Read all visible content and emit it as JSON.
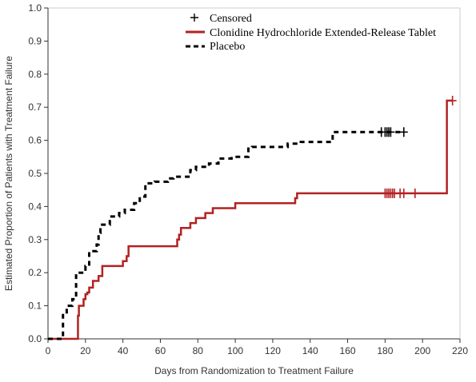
{
  "chart_data": {
    "type": "line",
    "xlabel": "Days from Randomization to Treatment Failure",
    "ylabel": "Estimated Proportion of Patients with Treatment Failure",
    "xlim": [
      0,
      220
    ],
    "ylim": [
      0.0,
      1.0
    ],
    "x_ticks": [
      0,
      20,
      40,
      60,
      80,
      100,
      120,
      140,
      160,
      180,
      200,
      220
    ],
    "y_ticks": [
      "0.0",
      "0.1",
      "0.2",
      "0.3",
      "0.4",
      "0.5",
      "0.6",
      "0.7",
      "0.8",
      "0.9",
      "1.0"
    ],
    "grid": false,
    "legend_position": "top-center",
    "legend": {
      "censored": "Censored",
      "entries": [
        "Clonidine Hydrochloride Extended-Release Tablet",
        "Placebo"
      ]
    },
    "series": [
      {
        "name": "Clonidine Hydrochloride Extended-Release Tablet",
        "color": "#b22222",
        "style": "solid",
        "steps": [
          [
            0,
            0.0
          ],
          [
            16,
            0.07
          ],
          [
            16.5,
            0.1
          ],
          [
            19,
            0.12
          ],
          [
            20,
            0.135
          ],
          [
            21,
            0.14
          ],
          [
            22,
            0.155
          ],
          [
            24,
            0.175
          ],
          [
            27,
            0.19
          ],
          [
            29,
            0.22
          ],
          [
            40,
            0.235
          ],
          [
            42,
            0.25
          ],
          [
            43,
            0.28
          ],
          [
            69,
            0.3
          ],
          [
            70,
            0.315
          ],
          [
            71,
            0.335
          ],
          [
            76,
            0.35
          ],
          [
            79,
            0.365
          ],
          [
            84,
            0.38
          ],
          [
            88,
            0.395
          ],
          [
            100,
            0.41
          ],
          [
            132,
            0.425
          ],
          [
            133,
            0.44
          ],
          [
            213,
            0.72
          ]
        ],
        "end_x": 216,
        "censored_x": [
          180,
          181,
          182,
          183,
          184,
          185,
          188,
          190,
          196,
          216
        ]
      },
      {
        "name": "Placebo",
        "color": "#000000",
        "style": "dashed",
        "steps": [
          [
            0,
            0.0
          ],
          [
            8,
            0.08
          ],
          [
            10,
            0.1
          ],
          [
            13,
            0.12
          ],
          [
            15,
            0.2
          ],
          [
            20,
            0.22
          ],
          [
            22,
            0.265
          ],
          [
            26,
            0.285
          ],
          [
            27,
            0.32
          ],
          [
            28,
            0.345
          ],
          [
            33,
            0.37
          ],
          [
            38,
            0.38
          ],
          [
            41,
            0.39
          ],
          [
            46,
            0.41
          ],
          [
            49,
            0.43
          ],
          [
            52,
            0.47
          ],
          [
            57,
            0.475
          ],
          [
            64,
            0.485
          ],
          [
            67,
            0.49
          ],
          [
            76,
            0.51
          ],
          [
            79,
            0.52
          ],
          [
            86,
            0.53
          ],
          [
            91,
            0.545
          ],
          [
            98,
            0.55
          ],
          [
            107,
            0.575
          ],
          [
            109,
            0.58
          ],
          [
            128,
            0.59
          ],
          [
            135,
            0.595
          ],
          [
            152,
            0.625
          ]
        ],
        "end_x": 190,
        "censored_x": [
          178,
          180,
          181,
          182,
          183,
          190
        ]
      }
    ]
  }
}
